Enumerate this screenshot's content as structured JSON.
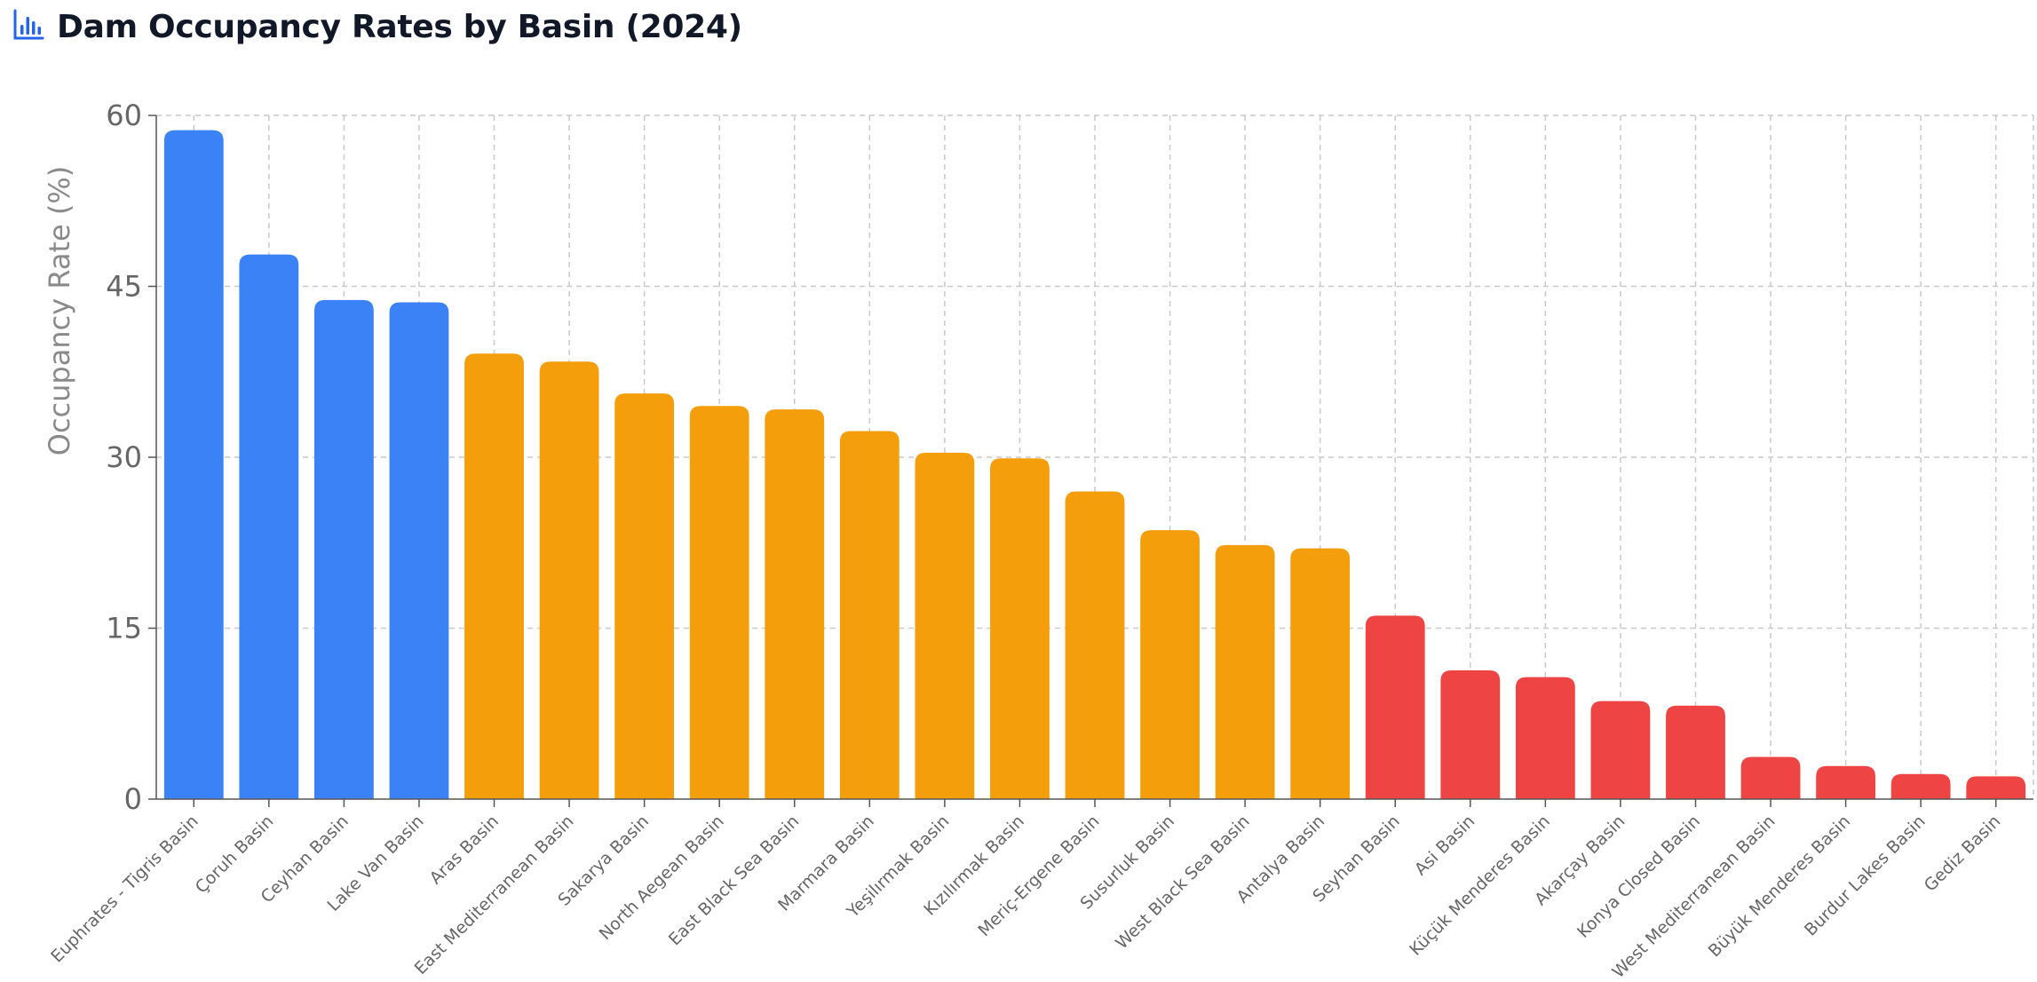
{
  "title": "Dam Occupancy Rates by Basin (2024)",
  "title_icon": "bar-chart-icon",
  "colors": {
    "high": "#3b82f6",
    "medium": "#f59e0b",
    "low": "#ef4444",
    "title_icon": "#2563eb"
  },
  "chart_data": {
    "type": "bar",
    "title": "Dam Occupancy Rates by Basin (2024)",
    "xlabel": "",
    "ylabel": "Occupancy Rate (%)",
    "ylim": [
      0,
      60
    ],
    "yticks": [
      0,
      15,
      30,
      45,
      60
    ],
    "grid": true,
    "categories": [
      "Euphrates - Tigris Basin",
      "Çoruh Basin",
      "Ceyhan Basin",
      "Lake Van Basin",
      "Aras Basin",
      "East Mediterranean Basin",
      "Sakarya Basin",
      "North Aegean Basin",
      "East Black Sea Basin",
      "Marmara Basin",
      "Yeşilırmak Basin",
      "Kızılırmak Basin",
      "Meriç-Ergene Basin",
      "Susurluk Basin",
      "West Black Sea Basin",
      "Antalya Basin",
      "Seyhan Basin",
      "Asi Basin",
      "Küçük Menderes Basin",
      "Akarçay Basin",
      "Konya Closed Basin",
      "West Mediterranean Basin",
      "Büyük Menderes Basin",
      "Burdur Lakes Basin",
      "Gediz Basin"
    ],
    "values": [
      58.7,
      47.8,
      43.8,
      43.6,
      39.1,
      38.4,
      35.6,
      34.5,
      34.2,
      32.3,
      30.4,
      29.9,
      27.0,
      23.6,
      22.3,
      22.0,
      16.1,
      11.3,
      10.7,
      8.6,
      8.2,
      3.7,
      2.9,
      2.2,
      2.0
    ],
    "groups": [
      "high",
      "high",
      "high",
      "high",
      "medium",
      "medium",
      "medium",
      "medium",
      "medium",
      "medium",
      "medium",
      "medium",
      "medium",
      "medium",
      "medium",
      "medium",
      "low",
      "low",
      "low",
      "low",
      "low",
      "low",
      "low",
      "low",
      "low"
    ]
  }
}
